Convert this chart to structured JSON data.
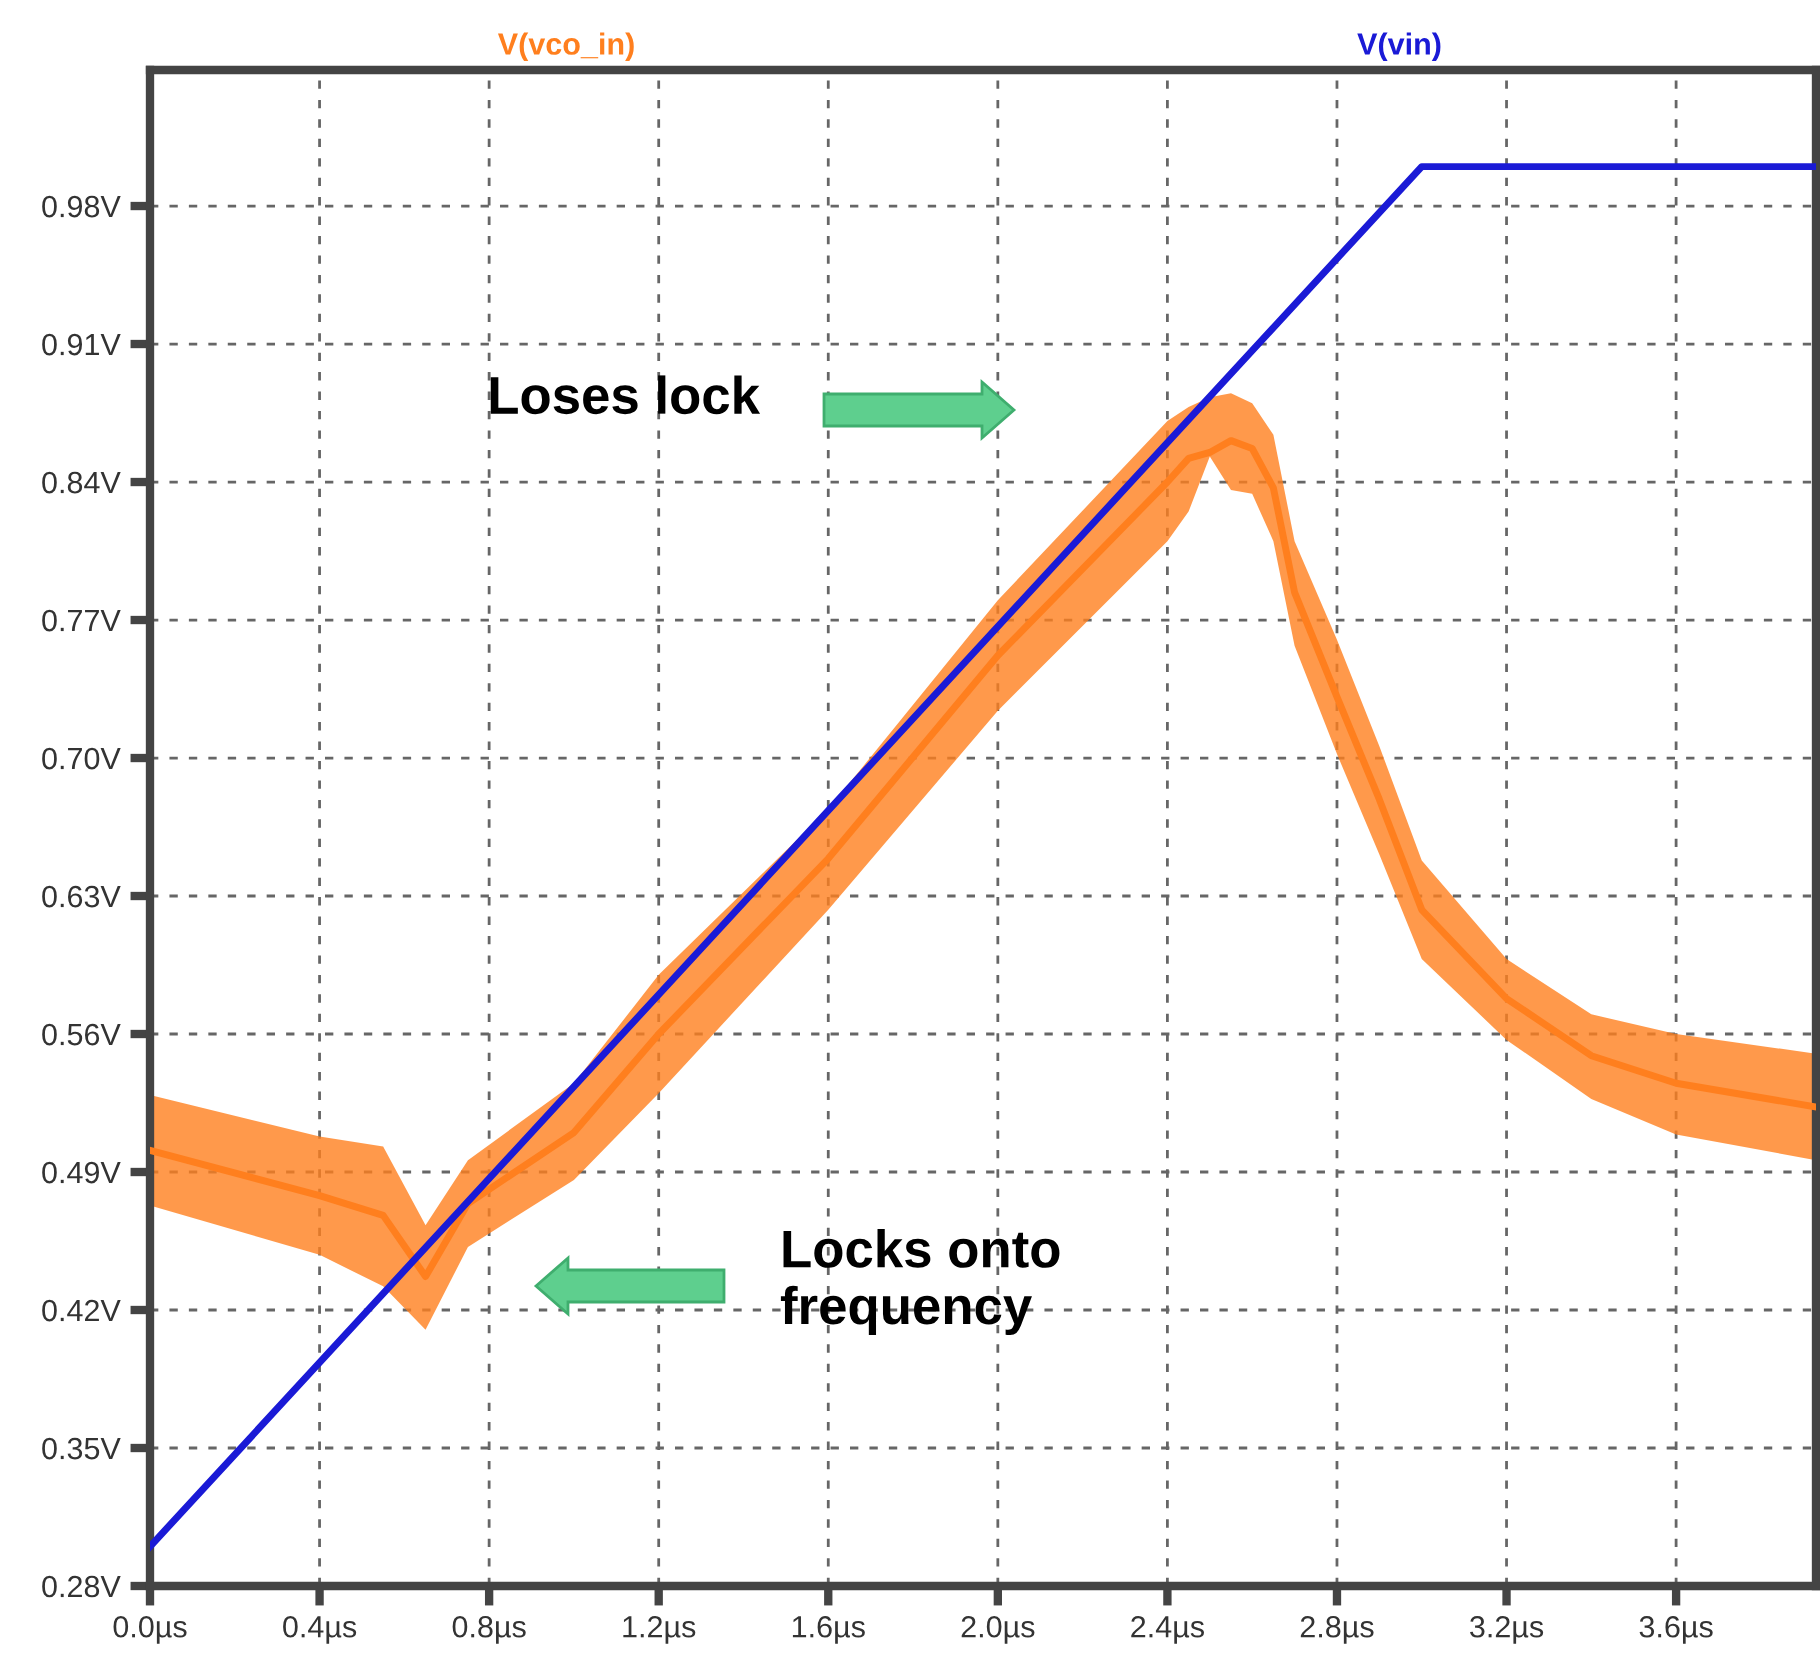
{
  "chart_data": {
    "type": "line",
    "xlim": [
      0,
      3.93
    ],
    "ylim": [
      0.28,
      1.049
    ],
    "xticks": [
      {
        "value": 0.0,
        "label": "0.0µs"
      },
      {
        "value": 0.4,
        "label": "0.4µs"
      },
      {
        "value": 0.8,
        "label": "0.8µs"
      },
      {
        "value": 1.2,
        "label": "1.2µs"
      },
      {
        "value": 1.6,
        "label": "1.6µs"
      },
      {
        "value": 2.0,
        "label": "2.0µs"
      },
      {
        "value": 2.4,
        "label": "2.4µs"
      },
      {
        "value": 2.8,
        "label": "2.8µs"
      },
      {
        "value": 3.2,
        "label": "3.2µs"
      },
      {
        "value": 3.6,
        "label": "3.6µs"
      }
    ],
    "yticks": [
      {
        "value": 0.28,
        "label": "0.28V"
      },
      {
        "value": 0.35,
        "label": "0.35V"
      },
      {
        "value": 0.42,
        "label": "0.42V"
      },
      {
        "value": 0.49,
        "label": "0.49V"
      },
      {
        "value": 0.56,
        "label": "0.56V"
      },
      {
        "value": 0.63,
        "label": "0.63V"
      },
      {
        "value": 0.7,
        "label": "0.70V"
      },
      {
        "value": 0.77,
        "label": "0.77V"
      },
      {
        "value": 0.84,
        "label": "0.84V"
      },
      {
        "value": 0.91,
        "label": "0.91V"
      },
      {
        "value": 0.98,
        "label": "0.98V"
      }
    ],
    "grid": true,
    "legend": "top",
    "line_style": "solid",
    "series": [
      {
        "name": "V(vco_in)",
        "color": "#ff7f1e",
        "x": [
          0,
          0.4,
          0.55,
          0.65,
          0.75,
          1.0,
          1.2,
          1.6,
          2.0,
          2.4,
          2.45,
          2.5,
          2.55,
          2.6,
          2.65,
          2.7,
          2.8,
          2.9,
          3.0,
          3.2,
          3.4,
          3.6,
          3.93
        ],
        "values": [
          0.501,
          0.478,
          0.468,
          0.437,
          0.474,
          0.51,
          0.56,
          0.649,
          0.752,
          0.84,
          0.852,
          0.855,
          0.861,
          0.857,
          0.837,
          0.784,
          0.731,
          0.679,
          0.623,
          0.578,
          0.549,
          0.535,
          0.523
        ],
        "lower": [
          0.473,
          0.448,
          0.432,
          0.41,
          0.452,
          0.486,
          0.53,
          0.623,
          0.724,
          0.81,
          0.825,
          0.853,
          0.836,
          0.834,
          0.81,
          0.757,
          0.702,
          0.651,
          0.598,
          0.557,
          0.527,
          0.509,
          0.496
        ],
        "upper": [
          0.529,
          0.508,
          0.503,
          0.463,
          0.496,
          0.535,
          0.59,
          0.674,
          0.78,
          0.871,
          0.878,
          0.883,
          0.885,
          0.88,
          0.864,
          0.81,
          0.76,
          0.706,
          0.648,
          0.598,
          0.57,
          0.56,
          0.55
        ]
      },
      {
        "name": "V(vin)",
        "color": "#1a1ad6",
        "x": [
          0,
          3.0,
          3.93
        ],
        "values": [
          0.3,
          1.0,
          1.0
        ]
      }
    ],
    "annotations": [
      "Loses lock",
      "Locks onto\nfrequency"
    ]
  }
}
